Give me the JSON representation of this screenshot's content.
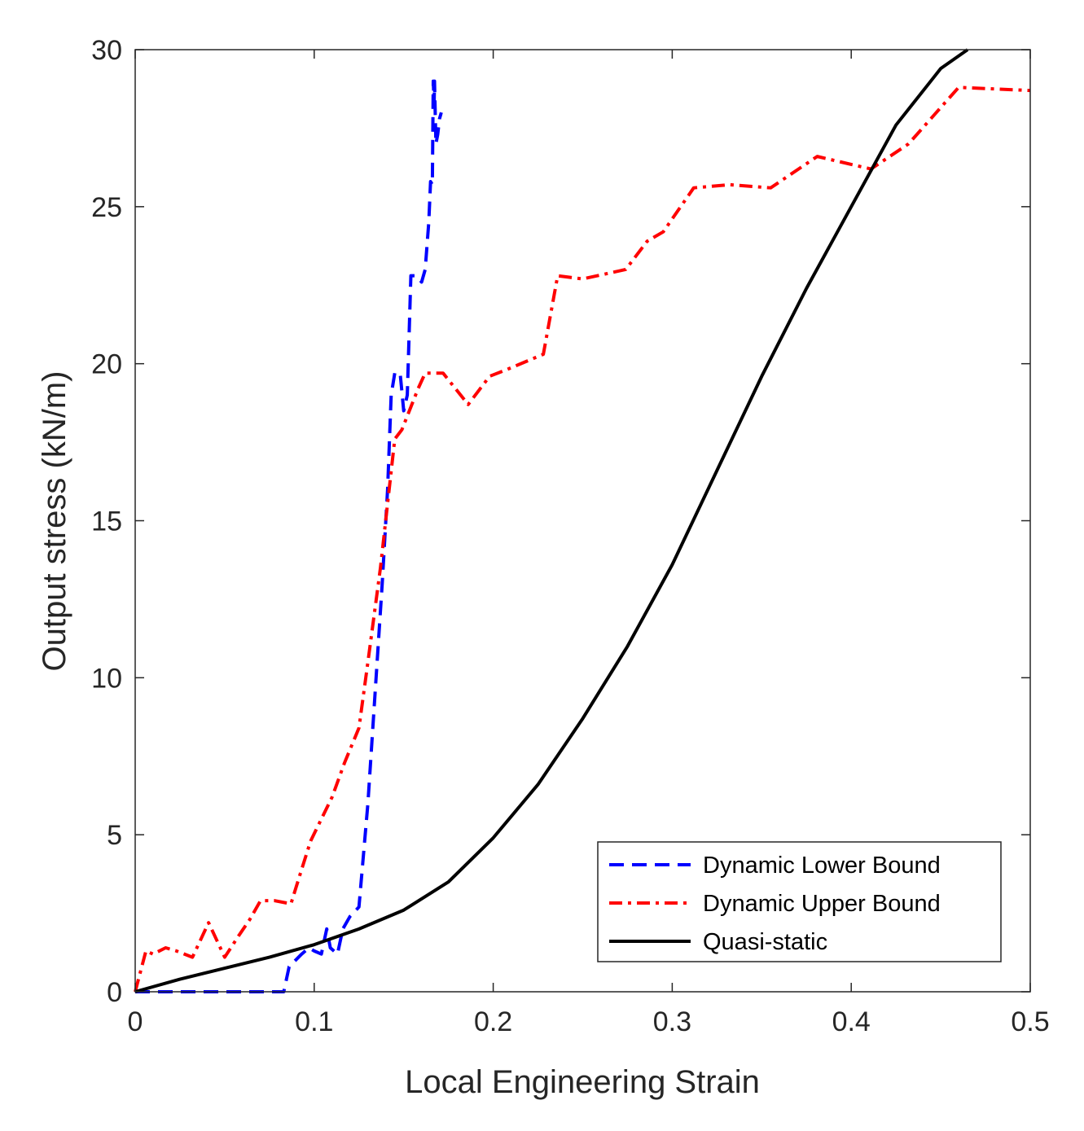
{
  "colors": {
    "lower": "#0000ff",
    "upper": "#ff0000",
    "quasi": "#000000",
    "axis": "#262626",
    "background": "#ffffff"
  },
  "chart_data": {
    "type": "line",
    "title": "",
    "xlabel": "Local Engineering Strain",
    "ylabel": "Output stress (kN/m)",
    "xlim": [
      0,
      0.5
    ],
    "ylim": [
      0,
      30
    ],
    "xticks": [
      "0",
      "0.1",
      "0.2",
      "0.3",
      "0.4",
      "0.5"
    ],
    "yticks": [
      "0",
      "5",
      "10",
      "15",
      "20",
      "25",
      "30"
    ],
    "grid": false,
    "legend_position": "bottom-right",
    "series": [
      {
        "name": "Dynamic Lower Bound",
        "style": "dashed",
        "color": "#0000ff",
        "x": [
          0,
          0.083,
          0.086,
          0.093,
          0.097,
          0.1,
          0.104,
          0.107,
          0.109,
          0.113,
          0.116,
          0.12,
          0.125,
          0.13,
          0.134,
          0.138,
          0.141,
          0.143,
          0.145,
          0.148,
          0.15,
          0.152,
          0.154,
          0.157,
          0.16,
          0.162,
          0.164,
          0.165,
          0.166,
          0.1665,
          0.167,
          0.1672,
          0.168,
          0.169,
          0.17,
          0.171
        ],
        "y": [
          0,
          0,
          0.8,
          1.2,
          1.4,
          1.3,
          1.2,
          2.0,
          1.4,
          1.2,
          2.0,
          2.4,
          2.7,
          6.0,
          9.5,
          13.0,
          16.0,
          19.0,
          19.7,
          19.7,
          18.5,
          19.0,
          22.8,
          22.8,
          22.6,
          23.0,
          24.5,
          25.8,
          25.7,
          29.0,
          28.3,
          29.0,
          27.0,
          27.3,
          27.8,
          28.0
        ]
      },
      {
        "name": "Dynamic Upper Bound",
        "style": "dashdot",
        "color": "#ff0000",
        "x": [
          0,
          0.006,
          0.01,
          0.017,
          0.023,
          0.032,
          0.041,
          0.05,
          0.058,
          0.064,
          0.07,
          0.078,
          0.087,
          0.093,
          0.098,
          0.11,
          0.117,
          0.125,
          0.13,
          0.137,
          0.145,
          0.149,
          0.158,
          0.162,
          0.165,
          0.172,
          0.186,
          0.198,
          0.207,
          0.228,
          0.236,
          0.25,
          0.274,
          0.286,
          0.295,
          0.312,
          0.332,
          0.355,
          0.381,
          0.411,
          0.432,
          0.46,
          0.5
        ],
        "y": [
          0,
          1.3,
          1.2,
          1.4,
          1.3,
          1.1,
          2.2,
          1.1,
          1.8,
          2.3,
          2.9,
          2.9,
          2.8,
          3.9,
          4.8,
          6.2,
          7.3,
          8.4,
          10.5,
          13.5,
          17.6,
          17.9,
          19.2,
          19.7,
          19.7,
          19.7,
          18.7,
          19.6,
          19.8,
          20.3,
          22.8,
          22.7,
          23.0,
          23.9,
          24.2,
          25.6,
          25.7,
          25.6,
          26.6,
          26.2,
          27.0,
          28.8,
          28.7
        ]
      },
      {
        "name": "Quasi-static",
        "style": "solid",
        "color": "#000000",
        "x": [
          0,
          0.025,
          0.05,
          0.075,
          0.1,
          0.125,
          0.15,
          0.175,
          0.2,
          0.225,
          0.25,
          0.275,
          0.3,
          0.325,
          0.35,
          0.375,
          0.4,
          0.425,
          0.45,
          0.465
        ],
        "y": [
          0,
          0.4,
          0.75,
          1.1,
          1.5,
          2.0,
          2.6,
          3.5,
          4.9,
          6.6,
          8.7,
          11.0,
          13.6,
          16.6,
          19.6,
          22.4,
          25.0,
          27.6,
          29.4,
          30.0
        ]
      }
    ]
  }
}
